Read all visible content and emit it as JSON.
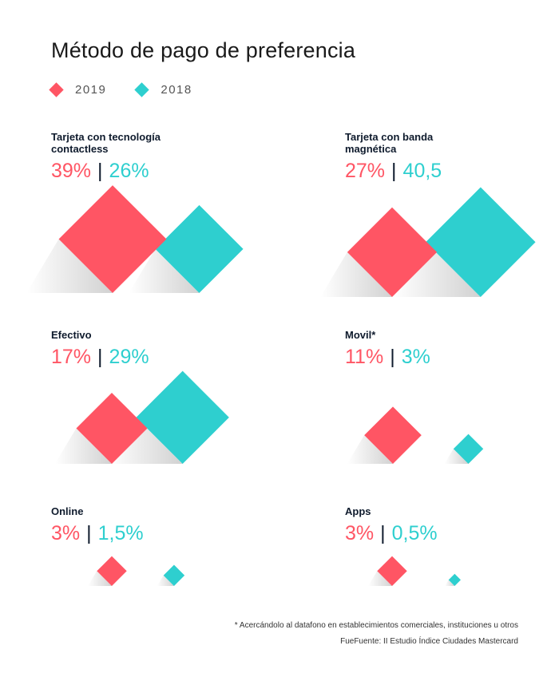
{
  "title": "Método de pago de preferencia",
  "legend": [
    {
      "label": "2019",
      "color": "#ff5564"
    },
    {
      "label": "2018",
      "color": "#2ecfcf"
    }
  ],
  "chart_data": {
    "type": "diamond-comparison",
    "series": [
      {
        "name": "2019",
        "color": "#ff5564"
      },
      {
        "name": "2018",
        "color": "#2ecfcf"
      }
    ],
    "panels": [
      {
        "label": "Tarjeta con tecnología contactless",
        "label_2019": "39%",
        "label_2018": "26%",
        "value_2019": 39,
        "value_2018": 26
      },
      {
        "label": "Tarjeta con banda magnética",
        "label_2019": "27%",
        "label_2018": "40,5",
        "value_2019": 27,
        "value_2018": 40.5
      },
      {
        "label": "Efectivo",
        "label_2019": "17%",
        "label_2018": "29%",
        "value_2019": 17,
        "value_2018": 29
      },
      {
        "label": "Movil*",
        "label_2019": "11%",
        "label_2018": "3%",
        "value_2019": 11,
        "value_2018": 3
      },
      {
        "label": "Online",
        "label_2019": "3%",
        "label_2018": "1,5%",
        "value_2019": 3,
        "value_2018": 1.5
      },
      {
        "label": "Apps",
        "label_2019": "3%",
        "label_2018": "0,5%",
        "value_2019": 3,
        "value_2018": 0.5
      }
    ]
  },
  "footnote": "* Acercándolo al datafono en establecimientos comerciales, instituciones u otros",
  "source": "FueFuente: II Estudio Índice Ciudades Mastercard"
}
